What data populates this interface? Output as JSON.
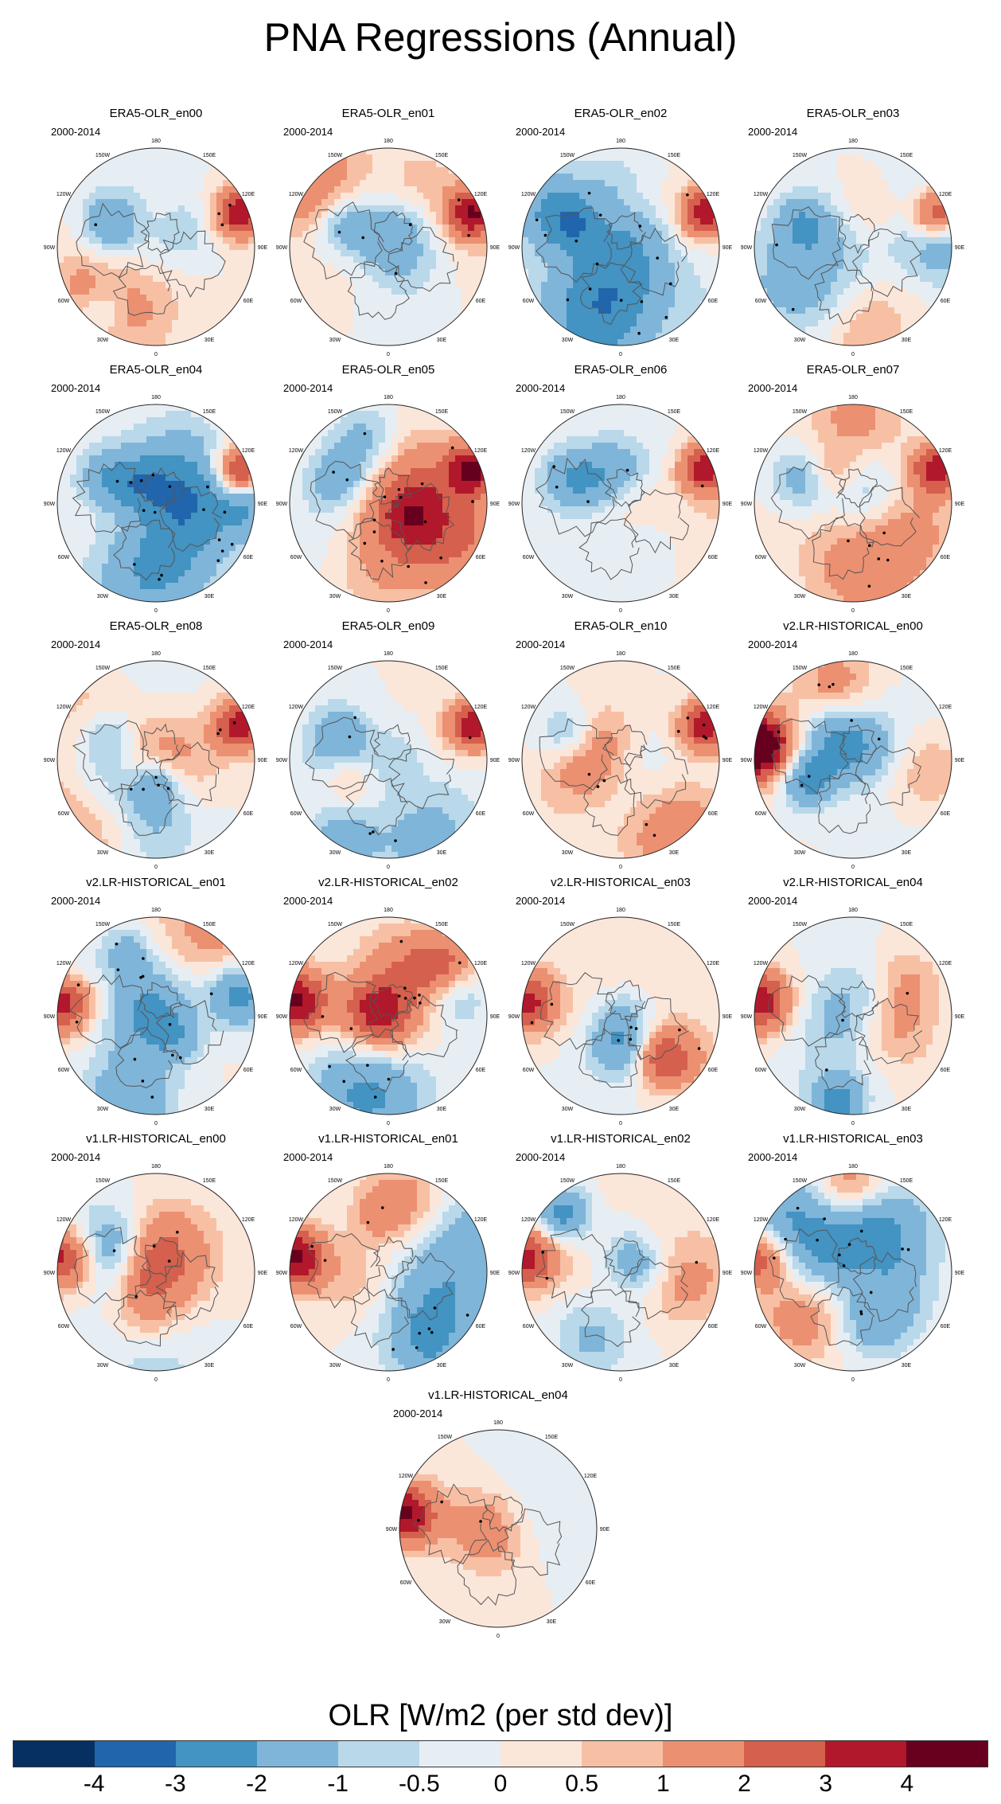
{
  "figure_title": "PNA Regressions (Annual)",
  "colorbar": {
    "title": "OLR [W/m2 (per std dev)]",
    "levels": [
      "-4",
      "-3",
      "-2",
      "-1",
      "-0.5",
      "0",
      "0.5",
      "1",
      "2",
      "3",
      "4"
    ],
    "colors": [
      "#053061",
      "#2166ac",
      "#4393c3",
      "#7fb5d9",
      "#b9d8ea",
      "#e6eef4",
      "#fbe6da",
      "#f7c0a4",
      "#ec9072",
      "#d5604d",
      "#b2182b",
      "#67001f"
    ]
  },
  "map_labels": {
    "lon": [
      "180",
      "150E",
      "120E",
      "90E",
      "60E",
      "30E",
      "0",
      "30W",
      "60W",
      "90W",
      "120W",
      "150W"
    ]
  },
  "chart_data": {
    "type": "polar_map",
    "variable": "OLR",
    "units": "W/m2 (per std dev)",
    "panels": [
      {
        "name": "ERA5-OLR_en00",
        "period": "2000-2014",
        "pattern": "era5",
        "seed": 11
      },
      {
        "name": "ERA5-OLR_en01",
        "period": "2000-2014",
        "pattern": "era5",
        "seed": 12
      },
      {
        "name": "ERA5-OLR_en02",
        "period": "2000-2014",
        "pattern": "era5",
        "seed": 13
      },
      {
        "name": "ERA5-OLR_en03",
        "period": "2000-2014",
        "pattern": "era5",
        "seed": 14
      },
      {
        "name": "ERA5-OLR_en04",
        "period": "2000-2014",
        "pattern": "era5",
        "seed": 15
      },
      {
        "name": "ERA5-OLR_en05",
        "period": "2000-2014",
        "pattern": "era5",
        "seed": 16
      },
      {
        "name": "ERA5-OLR_en06",
        "period": "2000-2014",
        "pattern": "era5",
        "seed": 17
      },
      {
        "name": "ERA5-OLR_en07",
        "period": "2000-2014",
        "pattern": "era5",
        "seed": 18
      },
      {
        "name": "ERA5-OLR_en08",
        "period": "2000-2014",
        "pattern": "era5",
        "seed": 19
      },
      {
        "name": "ERA5-OLR_en09",
        "period": "2000-2014",
        "pattern": "era5",
        "seed": 20
      },
      {
        "name": "ERA5-OLR_en10",
        "period": "2000-2014",
        "pattern": "era5",
        "seed": 21
      },
      {
        "name": "v2.LR-HISTORICAL_en00",
        "period": "2000-2014",
        "pattern": "model",
        "seed": 31
      },
      {
        "name": "v2.LR-HISTORICAL_en01",
        "period": "2000-2014",
        "pattern": "model",
        "seed": 32
      },
      {
        "name": "v2.LR-HISTORICAL_en02",
        "period": "2000-2014",
        "pattern": "model",
        "seed": 33
      },
      {
        "name": "v2.LR-HISTORICAL_en03",
        "period": "2000-2014",
        "pattern": "model",
        "seed": 34
      },
      {
        "name": "v2.LR-HISTORICAL_en04",
        "period": "2000-2014",
        "pattern": "model",
        "seed": 35
      },
      {
        "name": "v1.LR-HISTORICAL_en00",
        "period": "2000-2014",
        "pattern": "model",
        "seed": 41
      },
      {
        "name": "v1.LR-HISTORICAL_en01",
        "period": "2000-2014",
        "pattern": "model",
        "seed": 42
      },
      {
        "name": "v1.LR-HISTORICAL_en02",
        "period": "2000-2014",
        "pattern": "model",
        "seed": 43
      },
      {
        "name": "v1.LR-HISTORICAL_en03",
        "period": "2000-2014",
        "pattern": "model",
        "seed": 44
      },
      {
        "name": "v1.LR-HISTORICAL_en04",
        "period": "2000-2014",
        "pattern": "model",
        "seed": 45
      }
    ]
  }
}
